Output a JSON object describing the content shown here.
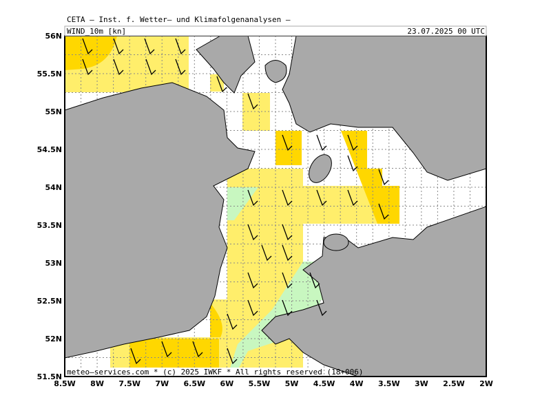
{
  "header": {
    "title": "CETA – Inst. f. Wetter– und Klimafolgenanalysen –"
  },
  "map": {
    "field": "WIND_10m [kn]",
    "date": "23.07.2025 00 UTC",
    "x_labels": [
      "8.5W",
      "8W",
      "7.5W",
      "7W",
      "6.5W",
      "6W",
      "5.5W",
      "5W",
      "4.5W",
      "4W",
      "3.5W",
      "3W",
      "2.5W",
      "2W"
    ],
    "y_labels": [
      "56N",
      "55.5N",
      "55N",
      "54.5N",
      "54N",
      "53.5N",
      "53N",
      "52.5N",
      "52N",
      "51.5N"
    ]
  },
  "footer": {
    "text": "meteo–services.com * (c) 2025 IWKF * All rights reserved (18+006)"
  }
}
